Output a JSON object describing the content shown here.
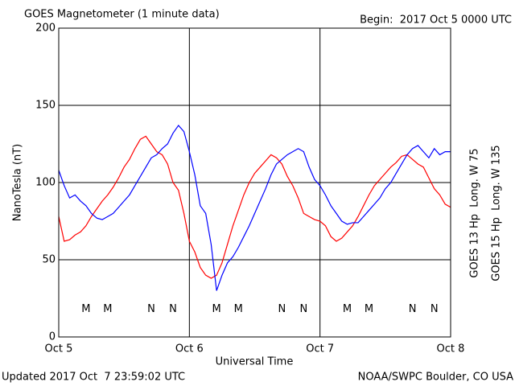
{
  "chart_data": {
    "type": "line",
    "title": "GOES Magnetometer (1 minute data)",
    "begin_label": "Begin:  2017 Oct 5 0000 UTC",
    "ylabel": "NanoTesla (nT)",
    "xlabel": "Universal Time",
    "footer_left": "Updated 2017 Oct  7 23:59:02 UTC",
    "footer_right": "NOAA/SWPC Boulder, CO USA",
    "xlim": [
      0,
      72
    ],
    "xticks": [
      {
        "value": 0,
        "label": "Oct 5"
      },
      {
        "value": 24,
        "label": "Oct 6"
      },
      {
        "value": 48,
        "label": "Oct 7"
      },
      {
        "value": 72,
        "label": "Oct 8"
      }
    ],
    "ylim": [
      0,
      200
    ],
    "yticks": [
      0,
      50,
      100,
      150,
      200
    ],
    "grid": true,
    "x": [
      0,
      1,
      2,
      3,
      4,
      5,
      6,
      7,
      8,
      9,
      10,
      11,
      12,
      13,
      14,
      15,
      16,
      17,
      18,
      19,
      20,
      21,
      22,
      23,
      24,
      25,
      26,
      27,
      28,
      29,
      30,
      31,
      32,
      33,
      34,
      35,
      36,
      37,
      38,
      39,
      40,
      41,
      42,
      43,
      44,
      45,
      46,
      47,
      48,
      49,
      50,
      51,
      52,
      53,
      54,
      55,
      56,
      57,
      58,
      59,
      60,
      61,
      62,
      63,
      64,
      65,
      66,
      67,
      68,
      69,
      70,
      71,
      72
    ],
    "series": [
      {
        "name": "GOES 13 Hp  Long. W 75",
        "color": "#ff0000",
        "values": [
          78,
          62,
          63,
          66,
          68,
          72,
          78,
          83,
          88,
          92,
          97,
          103,
          110,
          115,
          122,
          128,
          130,
          125,
          120,
          118,
          112,
          100,
          95,
          80,
          62,
          55,
          45,
          40,
          38,
          40,
          48,
          60,
          72,
          82,
          92,
          100,
          106,
          110,
          114,
          118,
          116,
          112,
          104,
          98,
          90,
          80,
          78,
          76,
          75,
          72,
          65,
          62,
          64,
          68,
          72,
          78,
          85,
          92,
          98,
          102,
          106,
          110,
          113,
          117,
          118,
          115,
          112,
          110,
          103,
          96,
          92,
          86,
          84
        ]
      },
      {
        "name": "GOES 15 Hp  Long. W 135",
        "color": "#0000ff",
        "values": [
          108,
          98,
          90,
          92,
          88,
          85,
          80,
          77,
          76,
          78,
          80,
          84,
          88,
          92,
          98,
          104,
          110,
          116,
          118,
          122,
          125,
          132,
          137,
          133,
          120,
          105,
          85,
          80,
          60,
          30,
          40,
          48,
          52,
          58,
          65,
          72,
          80,
          88,
          96,
          105,
          112,
          115,
          118,
          120,
          122,
          120,
          110,
          102,
          98,
          92,
          85,
          80,
          75,
          73,
          74,
          74,
          78,
          82,
          86,
          90,
          96,
          100,
          106,
          112,
          118,
          122,
          124,
          120,
          116,
          122,
          118,
          120,
          120
        ]
      }
    ],
    "markers": [
      {
        "label": "M",
        "series": 0,
        "x": 5,
        "y": 18
      },
      {
        "label": "M",
        "series": 1,
        "x": 9,
        "y": 18
      },
      {
        "label": "N",
        "series": 0,
        "x": 17,
        "y": 18
      },
      {
        "label": "N",
        "series": 1,
        "x": 21,
        "y": 18
      },
      {
        "label": "M",
        "series": 0,
        "x": 29,
        "y": 18
      },
      {
        "label": "M",
        "series": 1,
        "x": 33,
        "y": 18
      },
      {
        "label": "N",
        "series": 0,
        "x": 41,
        "y": 18
      },
      {
        "label": "N",
        "series": 1,
        "x": 45,
        "y": 18
      },
      {
        "label": "M",
        "series": 0,
        "x": 53,
        "y": 18
      },
      {
        "label": "M",
        "series": 1,
        "x": 57,
        "y": 18
      },
      {
        "label": "N",
        "series": 0,
        "x": 65,
        "y": 18
      },
      {
        "label": "N",
        "series": 1,
        "x": 69,
        "y": 18
      }
    ]
  }
}
